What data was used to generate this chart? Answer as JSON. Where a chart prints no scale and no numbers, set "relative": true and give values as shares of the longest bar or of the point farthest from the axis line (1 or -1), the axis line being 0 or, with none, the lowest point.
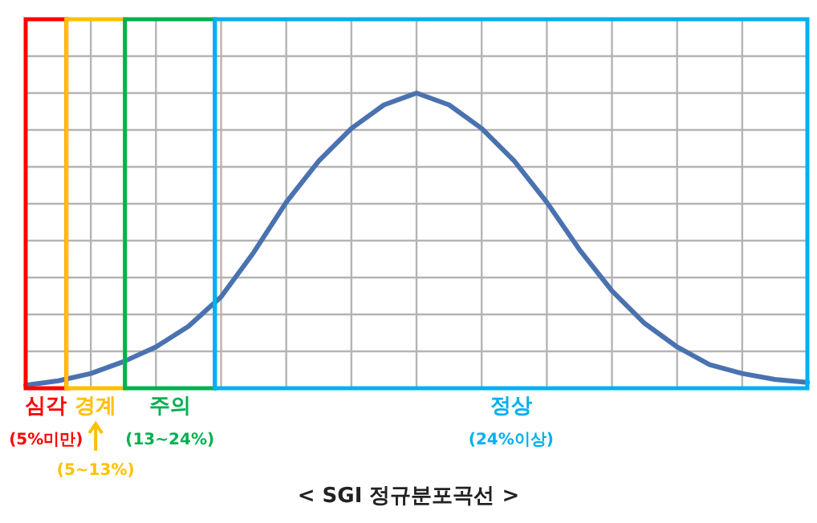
{
  "chart_data": {
    "type": "line",
    "relative": true,
    "title": "< SGI 정규분포곡선 >",
    "categories": [
      null,
      null,
      null,
      null,
      null,
      null,
      null,
      null,
      null,
      null,
      null,
      null,
      null,
      null,
      null,
      null,
      null,
      null,
      null,
      null,
      null,
      null,
      null,
      null,
      null
    ],
    "series": [
      {
        "color": "#4a72b0",
        "values": [
          0.01,
          0.025,
          0.05,
          0.09,
          0.14,
          0.21,
          0.31,
          0.46,
          0.63,
          0.77,
          0.88,
          0.96,
          1,
          0.96,
          0.88,
          0.77,
          0.63,
          0.47,
          0.33,
          0.22,
          0.14,
          0.08,
          0.05,
          0.03,
          0.02
        ]
      }
    ],
    "grid": true,
    "marker": "none",
    "line_style": "solid",
    "annotations": [
      "심각",
      "(5%미만)",
      "경계",
      "(5~13%)",
      "주의",
      "(13~24%)",
      "정상",
      "(24%이상)"
    ]
  }
}
